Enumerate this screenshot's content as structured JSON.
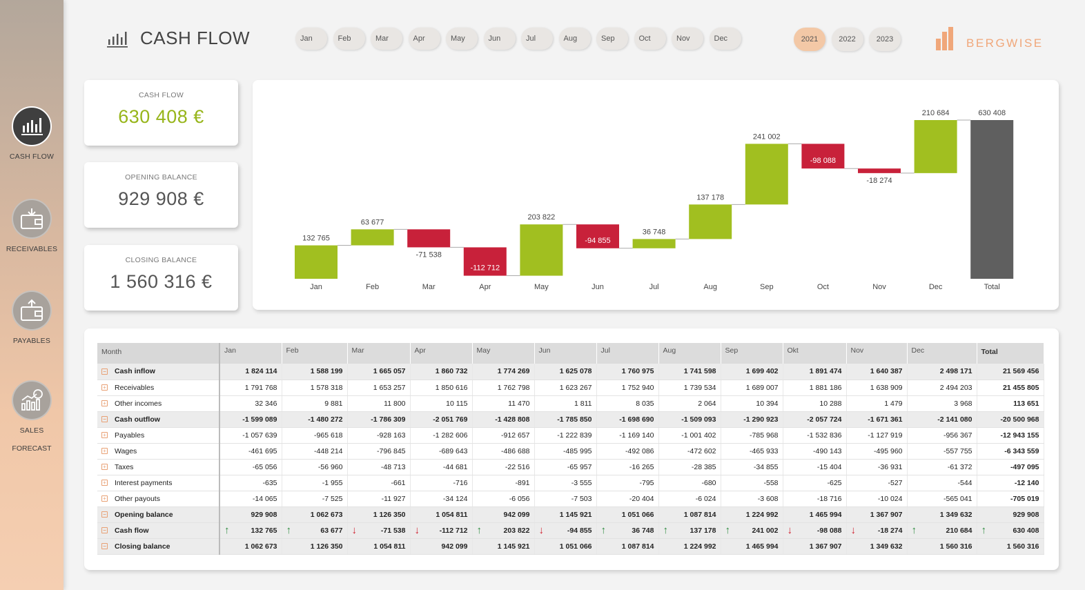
{
  "sidebar": {
    "items": [
      {
        "label": "CASH FLOW",
        "icon": "bar-chart-icon",
        "active": true
      },
      {
        "label": "RECEIVABLES",
        "icon": "wallet-in-icon",
        "active": false
      },
      {
        "label": "PAYABLES",
        "icon": "wallet-out-icon",
        "active": false
      },
      {
        "label": "SALES",
        "label2": "FORECAST",
        "icon": "forecast-icon",
        "active": false
      }
    ]
  },
  "header": {
    "title": "CASH FLOW",
    "months": [
      "Jan",
      "Feb",
      "Mar",
      "Apr",
      "May",
      "Jun",
      "Jul",
      "Aug",
      "Sep",
      "Oct",
      "Nov",
      "Dec"
    ],
    "years": [
      "2021",
      "2022",
      "2023"
    ],
    "selected_year": "2021",
    "logo_text": "BERGWISE"
  },
  "kpis": [
    {
      "label": "CASH FLOW",
      "value": "630 408 €"
    },
    {
      "label": "OPENING BALANCE",
      "value": "929 908 €"
    },
    {
      "label": "CLOSING BALANCE",
      "value": "1 560 316 €"
    }
  ],
  "colors": {
    "positive": "#a1bf20",
    "negative": "#c8213a",
    "total": "#5f5f5f",
    "accent": "#f0a77a"
  },
  "chart_data": {
    "type": "bar",
    "subtype": "waterfall",
    "categories": [
      "Jan",
      "Feb",
      "Mar",
      "Apr",
      "May",
      "Jun",
      "Jul",
      "Aug",
      "Sep",
      "Oct",
      "Nov",
      "Dec",
      "Total"
    ],
    "values": [
      132765,
      63677,
      -71538,
      -112712,
      203822,
      -94855,
      36748,
      137178,
      241002,
      -98088,
      -18274,
      210684,
      630408
    ],
    "labels": [
      "132 765",
      "63 677",
      "-71 538",
      "-112 712",
      "203 822",
      "-94 855",
      "36 748",
      "137 178",
      "241 002",
      "-98 088",
      "-18 274",
      "210 684",
      "630 408"
    ],
    "total_index": 12,
    "grid": false,
    "legend": "none"
  },
  "table": {
    "headers": [
      "Month",
      "Jan",
      "Feb",
      "Mar",
      "Apr",
      "May",
      "Jun",
      "Jul",
      "Aug",
      "Sep",
      "Okt",
      "Nov",
      "Dec",
      "Total"
    ],
    "rows": [
      {
        "label": "Cash inflow",
        "group": true,
        "expand": "⊟",
        "values": [
          "1 824 114",
          "1 588 199",
          "1 665 057",
          "1 860 732",
          "1 774 269",
          "1 625 078",
          "1 760 975",
          "1 741 598",
          "1 699 402",
          "1 891 474",
          "1 640 387",
          "2 498 171",
          "21 569 456"
        ]
      },
      {
        "label": "Receivables",
        "group": false,
        "expand": "⊞",
        "values": [
          "1 791 768",
          "1 578 318",
          "1 653 257",
          "1 850 616",
          "1 762 798",
          "1 623 267",
          "1 752 940",
          "1 739 534",
          "1 689 007",
          "1 881 186",
          "1 638 909",
          "2 494 203",
          "21 455 805"
        ]
      },
      {
        "label": "Other incomes",
        "group": false,
        "expand": "⊞",
        "values": [
          "32 346",
          "9 881",
          "11 800",
          "10 115",
          "11 470",
          "1 811",
          "8 035",
          "2 064",
          "10 394",
          "10 288",
          "1 479",
          "3 968",
          "113 651"
        ]
      },
      {
        "label": "Cash outflow",
        "group": true,
        "expand": "⊟",
        "values": [
          "-1 599 089",
          "-1 480 272",
          "-1 786 309",
          "-2 051 769",
          "-1 428 808",
          "-1 785 850",
          "-1 698 690",
          "-1 509 093",
          "-1 290 923",
          "-2 057 724",
          "-1 671 361",
          "-2 141 080",
          "-20 500 968"
        ]
      },
      {
        "label": "Payables",
        "group": false,
        "expand": "⊞",
        "values": [
          "-1 057 639",
          "-965 618",
          "-928 163",
          "-1 282 606",
          "-912 657",
          "-1 222 839",
          "-1 169 140",
          "-1 001 402",
          "-785 968",
          "-1 532 836",
          "-1 127 919",
          "-956 367",
          "-12 943 155"
        ]
      },
      {
        "label": "Wages",
        "group": false,
        "expand": "⊞",
        "values": [
          "-461 695",
          "-448 214",
          "-796 845",
          "-689 643",
          "-486 688",
          "-485 995",
          "-492 086",
          "-472 602",
          "-465 933",
          "-490 143",
          "-495 960",
          "-557 755",
          "-6 343 559"
        ]
      },
      {
        "label": "Taxes",
        "group": false,
        "expand": "⊞",
        "values": [
          "-65 056",
          "-56 960",
          "-48 713",
          "-44 681",
          "-22 516",
          "-65 957",
          "-16 265",
          "-28 385",
          "-34 855",
          "-15 404",
          "-36 931",
          "-61 372",
          "-497 095"
        ]
      },
      {
        "label": "Interest payments",
        "group": false,
        "expand": "⊞",
        "values": [
          "-635",
          "-1 955",
          "-661",
          "-716",
          "-891",
          "-3 555",
          "-795",
          "-680",
          "-558",
          "-625",
          "-527",
          "-544",
          "-12 140"
        ]
      },
      {
        "label": "Other payouts",
        "group": false,
        "expand": "⊞",
        "values": [
          "-14 065",
          "-7 525",
          "-11 927",
          "-34 124",
          "-6 056",
          "-7 503",
          "-20 404",
          "-6 024",
          "-3 608",
          "-18 716",
          "-10 024",
          "-565 041",
          "-705 019"
        ]
      },
      {
        "label": "Opening balance",
        "group": true,
        "expand": "⊟",
        "values": [
          "929 908",
          "1 062 673",
          "1 126 350",
          "1 054 811",
          "942 099",
          "1 145 921",
          "1 051 066",
          "1 087 814",
          "1 224 992",
          "1 465 994",
          "1 367 907",
          "1 349 632",
          "929 908"
        ]
      },
      {
        "label": "Cash flow",
        "group": true,
        "expand": "⊟",
        "arrows": [
          "up",
          "up",
          "down",
          "down",
          "up",
          "down",
          "up",
          "up",
          "up",
          "down",
          "down",
          "up",
          "up"
        ],
        "values": [
          "132 765",
          "63 677",
          "-71 538",
          "-112 712",
          "203 822",
          "-94 855",
          "36 748",
          "137 178",
          "241 002",
          "-98 088",
          "-18 274",
          "210 684",
          "630 408"
        ]
      },
      {
        "label": "Closing balance",
        "group": true,
        "expand": "⊟",
        "values": [
          "1 062 673",
          "1 126 350",
          "1 054 811",
          "942 099",
          "1 145 921",
          "1 051 066",
          "1 087 814",
          "1 224 992",
          "1 465 994",
          "1 367 907",
          "1 349 632",
          "1 560 316",
          "1 560 316"
        ]
      }
    ]
  }
}
